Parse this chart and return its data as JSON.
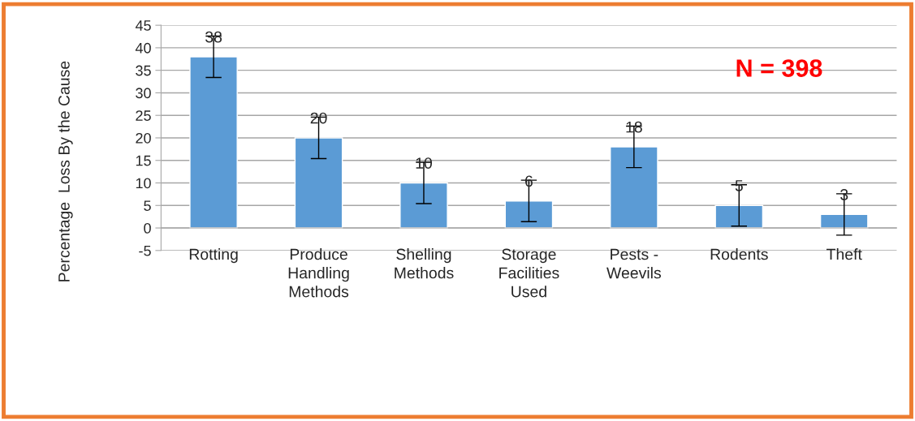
{
  "chart_data": {
    "type": "bar",
    "ylabel": "Percentage  Loss By the Cause",
    "categories": [
      "Rotting",
      "Produce\nHandling\nMethods",
      "Shelling\nMethods",
      "Storage\nFacilities\nUsed",
      "Pests -\nWeevils",
      "Rodents",
      "Theft"
    ],
    "values": [
      38,
      20,
      10,
      6,
      18,
      5,
      3
    ],
    "errors": [
      4.6,
      4.6,
      4.6,
      4.6,
      4.6,
      4.6,
      4.6
    ],
    "color": "#5b9bd5",
    "ylim": [
      -5,
      45
    ],
    "yticks": [
      -5,
      0,
      5,
      10,
      15,
      20,
      25,
      30,
      35,
      40,
      45
    ],
    "grid": "y",
    "data_labels": true,
    "annotations": [
      "N = 398"
    ]
  }
}
